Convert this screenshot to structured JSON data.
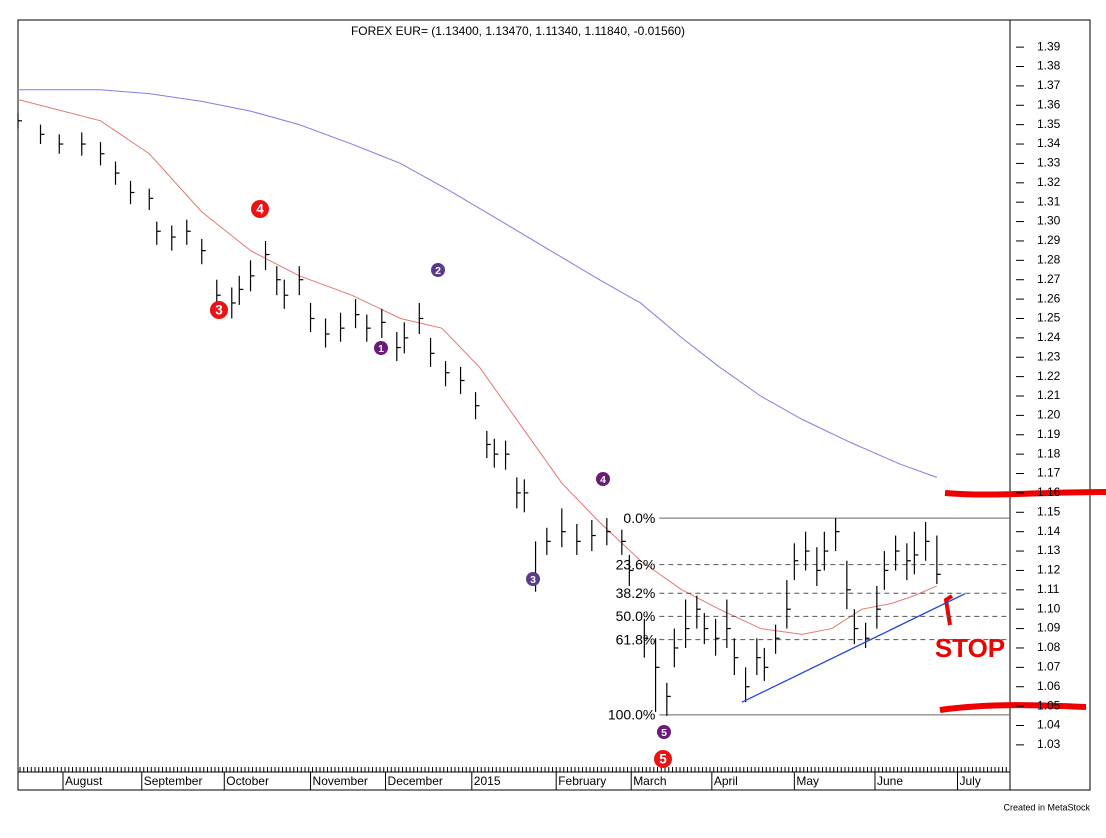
{
  "chart_data": {
    "type": "ohlc",
    "title": "FOREX EUR= (1.13400, 1.13470, 1.11340, 1.11840, -0.01560)",
    "footer": "Created in MetaStock",
    "stop_label": "STOP",
    "bar_color": "#000000",
    "x": [
      0,
      6,
      11,
      17,
      22,
      26,
      30,
      35,
      37,
      41,
      45,
      49,
      53,
      57,
      59,
      62,
      66,
      69,
      71,
      75,
      78,
      82,
      86,
      90,
      93,
      97,
      101,
      103,
      107,
      110,
      114,
      118,
      122,
      125,
      127,
      130,
      133,
      135,
      138,
      141,
      145,
      149,
      153,
      157,
      161,
      163,
      167,
      170,
      173,
      175,
      178,
      181,
      183,
      186,
      189,
      191,
      194,
      197,
      199,
      202,
      205,
      207,
      210,
      213,
      215,
      218,
      221,
      223,
      226,
      229,
      231,
      234,
      237,
      239,
      242,
      245
    ],
    "close": [
      1.352,
      1.345,
      1.34,
      1.34,
      1.335,
      1.325,
      1.315,
      1.312,
      1.295,
      1.292,
      1.295,
      1.285,
      1.262,
      1.258,
      1.265,
      1.272,
      1.283,
      1.27,
      1.262,
      1.27,
      1.25,
      1.242,
      1.245,
      1.252,
      1.245,
      1.248,
      1.235,
      1.24,
      1.25,
      1.232,
      1.222,
      1.218,
      1.205,
      1.185,
      1.18,
      1.18,
      1.16,
      1.16,
      1.115,
      1.135,
      1.14,
      1.135,
      1.138,
      1.14,
      1.135,
      1.12,
      1.085,
      1.07,
      1.055,
      1.08,
      1.09,
      1.1,
      1.09,
      1.085,
      1.09,
      1.075,
      1.06,
      1.075,
      1.07,
      1.085,
      1.1,
      1.125,
      1.13,
      1.12,
      1.13,
      1.14,
      1.11,
      1.09,
      1.085,
      1.1,
      1.12,
      1.13,
      1.125,
      1.128,
      1.135,
      1.118
    ],
    "high": [
      1.356,
      1.35,
      1.345,
      1.346,
      1.341,
      1.331,
      1.321,
      1.317,
      1.3,
      1.298,
      1.301,
      1.291,
      1.27,
      1.266,
      1.272,
      1.28,
      1.29,
      1.277,
      1.27,
      1.277,
      1.258,
      1.25,
      1.253,
      1.26,
      1.252,
      1.255,
      1.243,
      1.248,
      1.258,
      1.24,
      1.228,
      1.225,
      1.212,
      1.192,
      1.188,
      1.187,
      1.168,
      1.167,
      1.135,
      1.142,
      1.152,
      1.144,
      1.146,
      1.147,
      1.141,
      1.128,
      1.095,
      1.085,
      1.062,
      1.09,
      1.105,
      1.107,
      1.098,
      1.095,
      1.105,
      1.085,
      1.07,
      1.085,
      1.08,
      1.092,
      1.115,
      1.134,
      1.14,
      1.132,
      1.14,
      1.147,
      1.125,
      1.1,
      1.093,
      1.112,
      1.13,
      1.138,
      1.134,
      1.14,
      1.145,
      1.138
    ],
    "low": [
      1.348,
      1.34,
      1.335,
      1.334,
      1.329,
      1.319,
      1.309,
      1.306,
      1.288,
      1.285,
      1.288,
      1.278,
      1.255,
      1.25,
      1.257,
      1.264,
      1.275,
      1.262,
      1.255,
      1.262,
      1.243,
      1.235,
      1.238,
      1.245,
      1.238,
      1.24,
      1.228,
      1.232,
      1.242,
      1.225,
      1.215,
      1.211,
      1.198,
      1.178,
      1.173,
      1.172,
      1.152,
      1.15,
      1.109,
      1.128,
      1.132,
      1.128,
      1.13,
      1.133,
      1.128,
      1.112,
      1.075,
      1.047,
      1.045,
      1.07,
      1.08,
      1.09,
      1.082,
      1.076,
      1.08,
      1.066,
      1.052,
      1.066,
      1.063,
      1.077,
      1.09,
      1.115,
      1.12,
      1.112,
      1.12,
      1.13,
      1.1,
      1.082,
      1.08,
      1.09,
      1.11,
      1.12,
      1.115,
      1.118,
      1.125,
      1.113
    ],
    "ma_red": {
      "color": "#e8776e",
      "x": [
        0,
        22,
        35,
        49,
        62,
        75,
        89,
        102,
        113,
        123,
        134,
        145,
        155,
        166,
        177,
        187,
        198,
        209,
        217,
        225,
        233,
        239,
        245
      ],
      "values": [
        1.363,
        1.352,
        1.335,
        1.305,
        1.285,
        1.272,
        1.262,
        1.25,
        1.245,
        1.225,
        1.195,
        1.165,
        1.145,
        1.125,
        1.11,
        1.1,
        1.09,
        1.087,
        1.09,
        1.1,
        1.103,
        1.107,
        1.112
      ]
    },
    "ma_blue": {
      "color": "#7e7ee6",
      "x": [
        0,
        22,
        35,
        49,
        62,
        75,
        89,
        102,
        115,
        129,
        142,
        155,
        166,
        177,
        187,
        198,
        209,
        222,
        235,
        245
      ],
      "values": [
        1.368,
        1.368,
        1.366,
        1.362,
        1.357,
        1.35,
        1.34,
        1.33,
        1.316,
        1.3,
        1.285,
        1.27,
        1.258,
        1.24,
        1.225,
        1.21,
        1.198,
        1.186,
        1.175,
        1.168
      ]
    },
    "trendline": {
      "color": "#2040e0",
      "x": [
        193,
        252.5
      ],
      "values": [
        1.052,
        1.108
      ]
    },
    "fib_start_x": 171,
    "fib_levels": [
      {
        "value": 1.147,
        "label": "0.0%"
      },
      {
        "value": 1.123,
        "label": "23.6%"
      },
      {
        "value": 1.1082,
        "label": "38.2%"
      },
      {
        "value": 1.0963,
        "label": "50.0%"
      },
      {
        "value": 1.0843,
        "label": "61.8%"
      },
      {
        "value": 1.0455,
        "label": "100.0%"
      }
    ],
    "waves": [
      {
        "label": "4",
        "color": "#ee1111"
      },
      {
        "label": "3",
        "color": "#ee1111"
      },
      {
        "label": "5",
        "color": "#ee1111"
      },
      {
        "label": "2",
        "color": "#5a3a8a"
      },
      {
        "label": "1",
        "color": "#6a1a7a"
      },
      {
        "label": "3",
        "color": "#5a3a8a"
      },
      {
        "label": "4",
        "color": "#6a1a7a"
      },
      {
        "label": "5",
        "color": "#6a1a7a"
      }
    ],
    "xlim": [
      0,
      264.5
    ],
    "xticks": [
      {
        "value": 12,
        "label": "August"
      },
      {
        "value": 33,
        "label": "September"
      },
      {
        "value": 55,
        "label": "October"
      },
      {
        "value": 78,
        "label": "November"
      },
      {
        "value": 98,
        "label": "December"
      },
      {
        "value": 121,
        "label": "2015"
      },
      {
        "value": 143.5,
        "label": "February"
      },
      {
        "value": 163.5,
        "label": "March"
      },
      {
        "value": 185,
        "label": "April"
      },
      {
        "value": 207,
        "label": "May"
      },
      {
        "value": 228.5,
        "label": "June"
      },
      {
        "value": 250.5,
        "label": "July"
      }
    ],
    "ylim": [
      1.016,
      1.404
    ],
    "yticks": [
      1.03,
      1.04,
      1.05,
      1.06,
      1.07,
      1.08,
      1.09,
      {
        "value": 1.1,
        "label": "1.10"
      },
      1.11,
      1.12,
      1.13,
      1.14,
      1.15,
      1.16,
      1.17,
      1.18,
      1.19,
      {
        "value": 1.2,
        "label": "1.20"
      },
      1.21,
      1.22,
      1.23,
      1.24,
      1.25,
      1.26,
      1.27,
      1.28,
      1.29,
      {
        "value": 1.3,
        "label": "1.30"
      },
      1.31,
      1.32,
      1.33,
      1.34,
      1.35,
      1.36,
      1.37,
      1.38,
      1.39
    ]
  }
}
